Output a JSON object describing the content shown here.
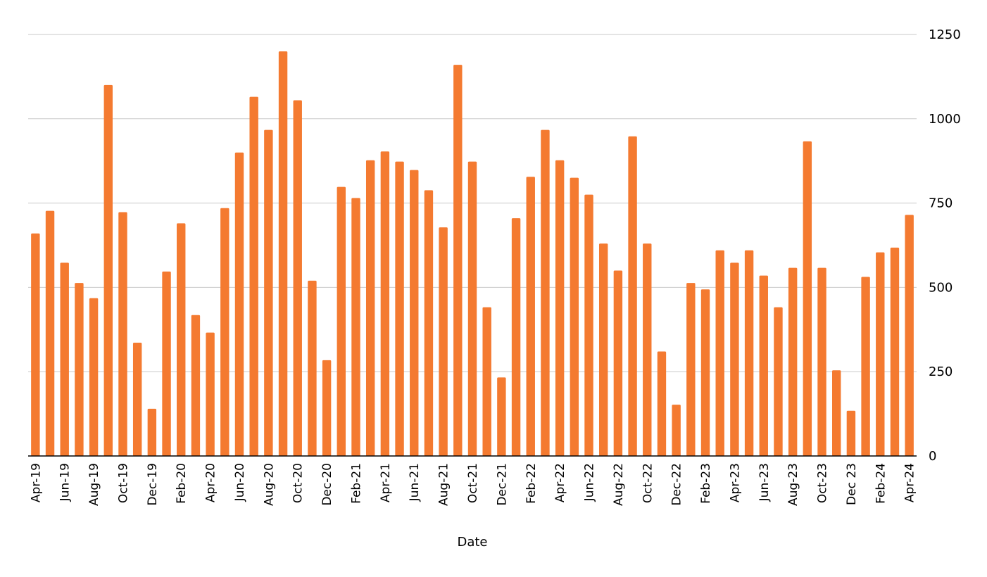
{
  "chart_data": {
    "type": "bar",
    "xlabel": "Date",
    "ylabel": "",
    "ylim": [
      0,
      1250
    ],
    "y_ticks": [
      0,
      250,
      500,
      750,
      1000,
      1250
    ],
    "y_axis_position": "right",
    "grid": true,
    "legend": "none",
    "bar_color": "#f47a30",
    "categories": [
      "Apr-19",
      "May-19",
      "Jun-19",
      "Jul-19",
      "Aug-19",
      "Sep-19",
      "Oct-19",
      "Nov-19",
      "Dec-19",
      "Jan-20",
      "Feb-20",
      "Mar-20",
      "Apr-20",
      "May-20",
      "Jun-20",
      "Jul-20",
      "Aug-20",
      "Sep-20",
      "Oct-20",
      "Nov-20",
      "Dec-20",
      "Jan-21",
      "Feb-21",
      "Mar-21",
      "Apr-21",
      "May-21",
      "Jun-21",
      "Jul-21",
      "Aug-21",
      "Sep-21",
      "Oct-21",
      "Nov-21",
      "Dec-21",
      "Jan-22",
      "Feb-22",
      "Mar-22",
      "Apr-22",
      "May-22",
      "Jun-22",
      "Jul-22",
      "Aug-22",
      "Sep-22",
      "Oct-22",
      "Nov-22",
      "Dec-22",
      "Jan-23",
      "Feb-23",
      "Mar-23",
      "Apr-23",
      "May-23",
      "Jun-23",
      "Jul-23",
      "Aug-23",
      "Sep-23",
      "Oct-23",
      "Nov-23",
      "Dec-23",
      "Jan-24",
      "Feb-24",
      "Mar-24",
      "Apr-24"
    ],
    "tick_labels": [
      "Apr-19",
      "Jun-19",
      "Aug-19",
      "Oct-19",
      "Dec-19",
      "Feb-20",
      "Apr-20",
      "Jun-20",
      "Aug-20",
      "Oct-20",
      "Dec-20",
      "Feb-21",
      "Apr-21",
      "Jun-21",
      "Aug-21",
      "Oct-21",
      "Dec-21",
      "Feb-22",
      "Apr-22",
      "Jun-22",
      "Aug-22",
      "Oct-22",
      "Dec-22",
      "Feb-23",
      "Apr-23",
      "Jun-23",
      "Aug-23",
      "Oct-23",
      "Dec 23",
      "Feb-24",
      "Apr-24"
    ],
    "values": [
      660,
      727,
      573,
      513,
      468,
      1100,
      723,
      336,
      140,
      547,
      690,
      418,
      366,
      735,
      900,
      1065,
      967,
      1200,
      1055,
      520,
      284,
      798,
      765,
      877,
      903,
      873,
      848,
      788,
      678,
      1160,
      873,
      441,
      233,
      705,
      828,
      967,
      877,
      825,
      775,
      630,
      550,
      948,
      630,
      310,
      152,
      513,
      494,
      610,
      573,
      610,
      535,
      441,
      558,
      933,
      558,
      254,
      134,
      531,
      604,
      618,
      715
    ]
  }
}
